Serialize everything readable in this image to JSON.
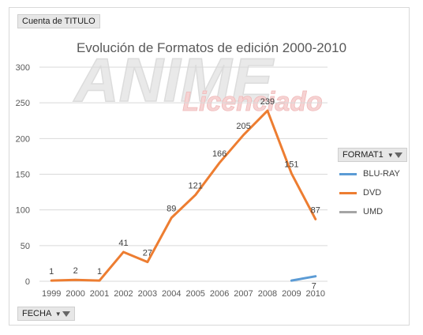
{
  "pivot": {
    "count_field": "Cuenta de TITULO",
    "legend_field": "FORMAT1",
    "axis_field": "FECHA"
  },
  "watermark": {
    "line1": "ANIME",
    "line2": "Licenciado"
  },
  "colors": {
    "BLU-RAY": "#5b9bd5",
    "DVD": "#ed7d31",
    "UMD": "#a5a5a5",
    "gridline": "#d9d9d9",
    "axis_text": "#595959"
  },
  "chart_data": {
    "type": "line",
    "title": "Evolución de Formatos de edición 2000-2010",
    "x": [
      "1999",
      "2000",
      "2001",
      "2002",
      "2003",
      "2004",
      "2005",
      "2006",
      "2007",
      "2008",
      "2009",
      "2010"
    ],
    "ylim": [
      0,
      300
    ],
    "yticks": [
      0,
      50,
      100,
      150,
      200,
      250,
      300
    ],
    "grid": true,
    "legend_position": "right",
    "series": [
      {
        "name": "BLU-RAY",
        "values": [
          null,
          null,
          null,
          null,
          null,
          null,
          null,
          null,
          null,
          null,
          1,
          7
        ],
        "labels": [
          null,
          null,
          null,
          null,
          null,
          null,
          null,
          null,
          null,
          null,
          null,
          "7"
        ]
      },
      {
        "name": "DVD",
        "values": [
          1,
          2,
          1,
          41,
          27,
          89,
          121,
          166,
          205,
          239,
          151,
          87
        ],
        "labels": [
          "1",
          "2",
          "1",
          "41",
          "27",
          "89",
          "121",
          "166",
          "205",
          "239",
          "151",
          "87"
        ]
      },
      {
        "name": "UMD",
        "values": [
          null,
          null,
          null,
          null,
          null,
          null,
          null,
          null,
          null,
          null,
          null,
          null
        ],
        "labels": []
      }
    ]
  }
}
